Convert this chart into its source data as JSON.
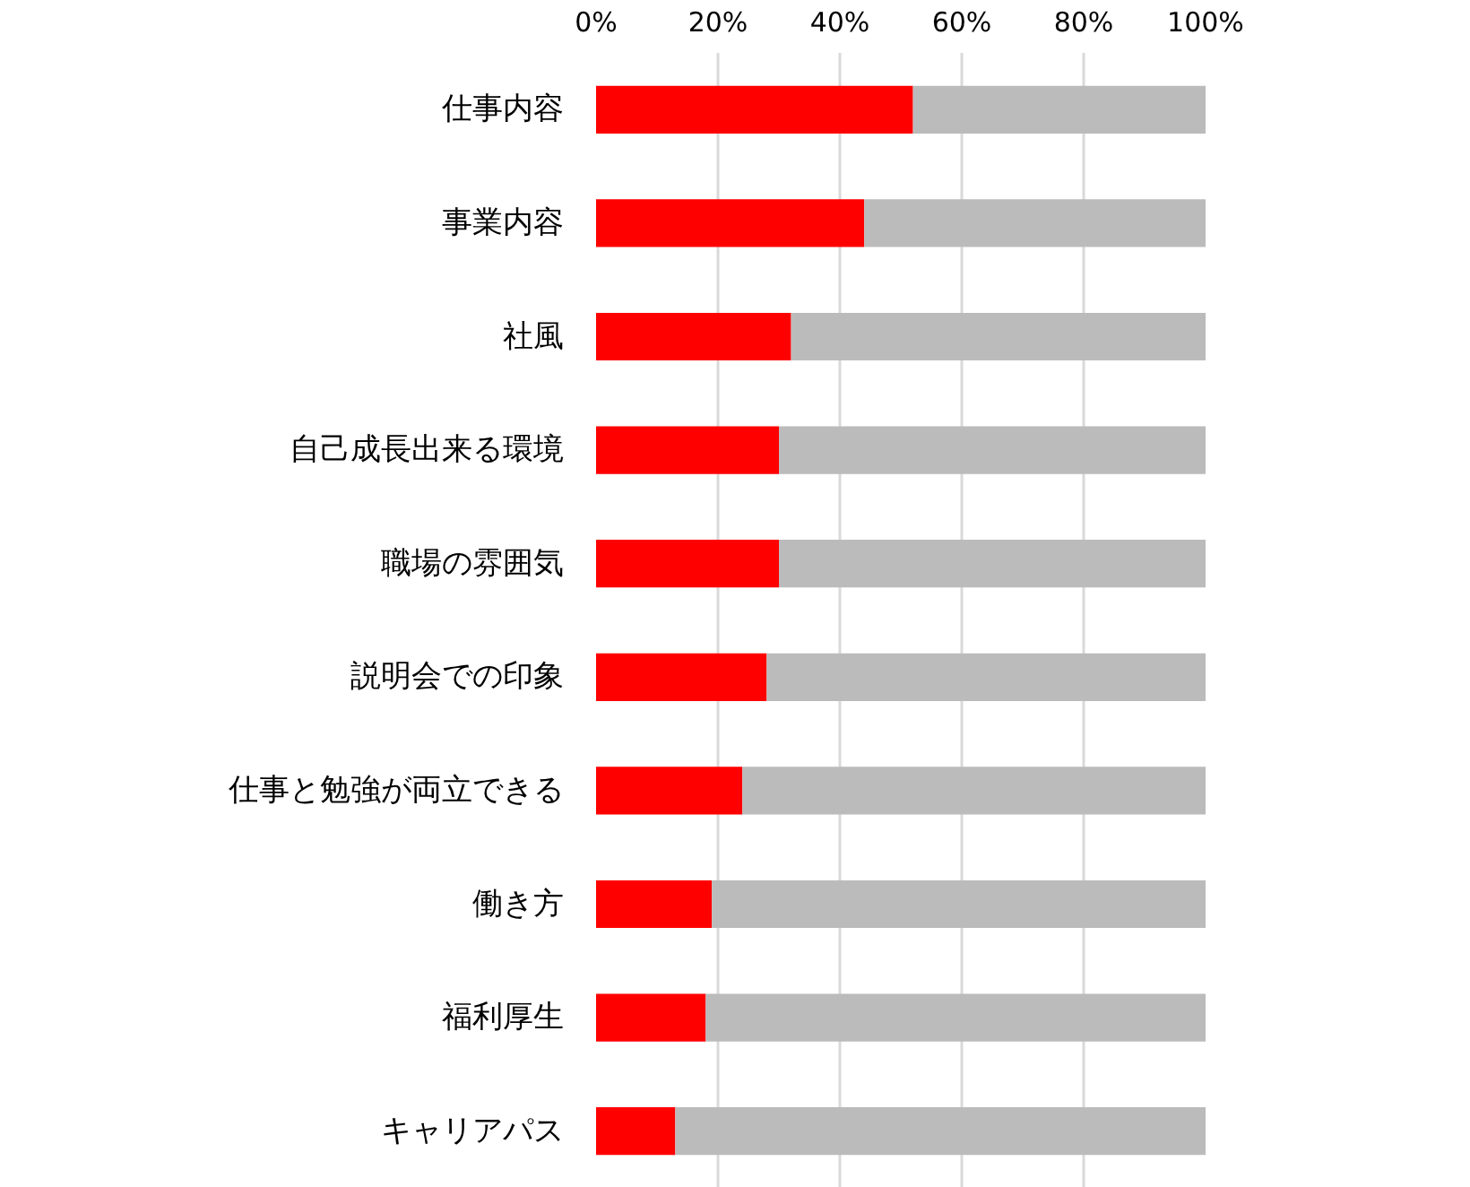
{
  "chart_data": {
    "type": "bar",
    "orientation": "horizontal",
    "stacked": true,
    "categories": [
      "仕事内容",
      "事業内容",
      "社風",
      "自己成長出来る環境",
      "職場の雰囲気",
      "説明会での印象",
      "仕事と勉強が両立できる",
      "働き方",
      "福利厚生",
      "キャリアパス"
    ],
    "series": [
      {
        "color": "#ff0000",
        "values": [
          52,
          44,
          32,
          30,
          30,
          28,
          24,
          19,
          18,
          13
        ]
      },
      {
        "color": "#bbbbbb",
        "values": [
          48,
          56,
          68,
          70,
          70,
          72,
          76,
          81,
          82,
          87
        ]
      }
    ],
    "xlim": [
      0,
      100
    ],
    "xticks": [
      {
        "value": 0,
        "label": "0%"
      },
      {
        "value": 20,
        "label": "20%"
      },
      {
        "value": 40,
        "label": "40%"
      },
      {
        "value": 60,
        "label": "60%"
      },
      {
        "value": 80,
        "label": "80%"
      },
      {
        "value": 100,
        "label": "100%"
      }
    ],
    "grid": "x"
  }
}
